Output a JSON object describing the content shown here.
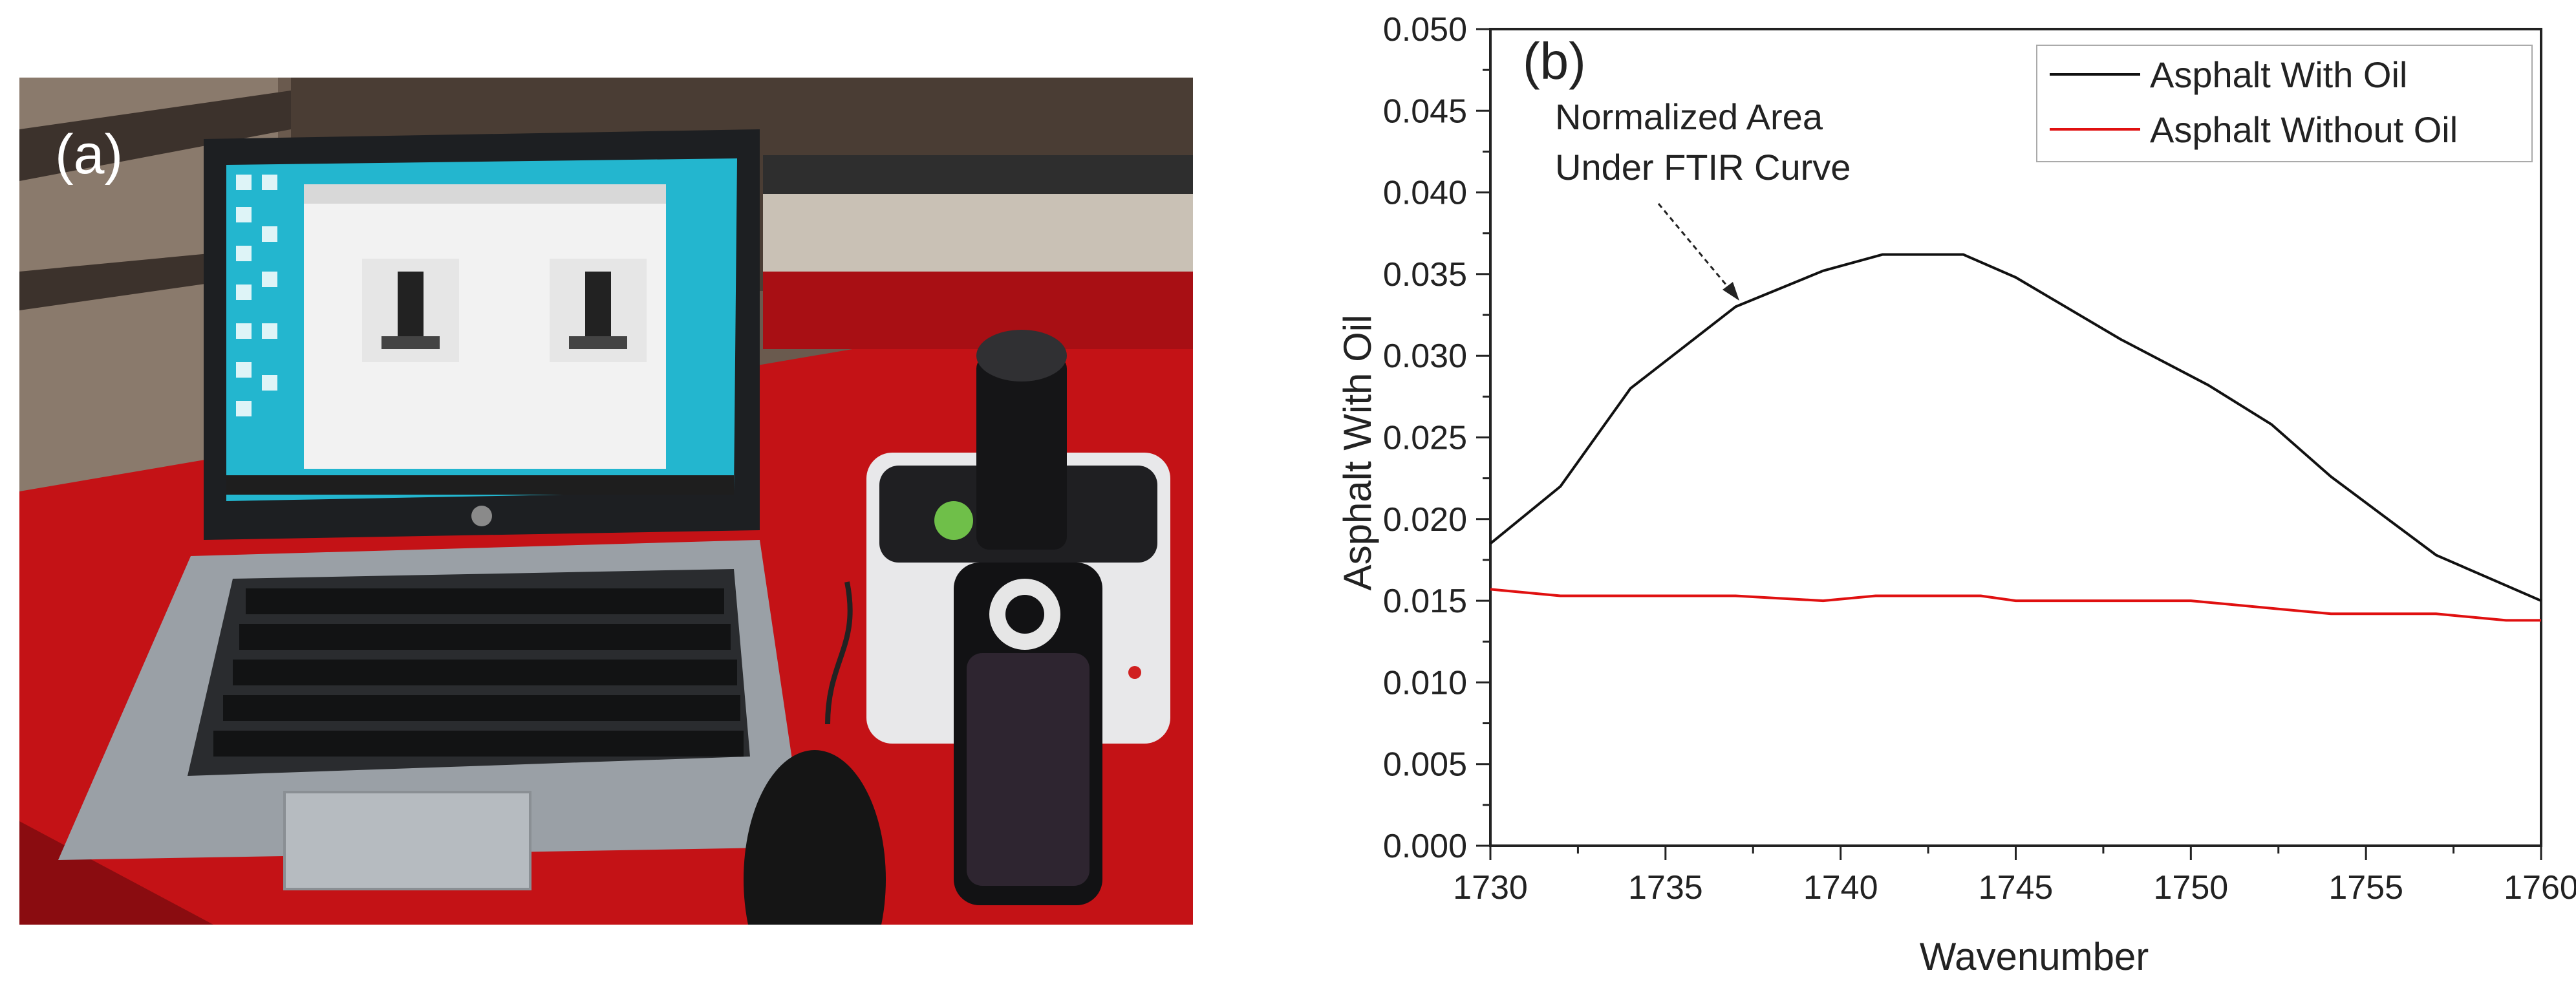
{
  "panel_a": {
    "label": "(a)",
    "scene": [
      "laptop",
      "ftir-spectrometer",
      "mouse",
      "red-table"
    ]
  },
  "panel_b": {
    "label": "(b)",
    "annotation": [
      "Normalized Area",
      "Under FTIR Curve"
    ]
  },
  "colors": {
    "series_with_oil": "#111111",
    "series_without_oil": "#e01010",
    "axis": "#222222"
  },
  "chart_data": {
    "type": "line",
    "title": "",
    "xlabel": "Wavenumber",
    "ylabel": "Asphalt With Oil",
    "xlim": [
      1730,
      1760
    ],
    "ylim": [
      0.0,
      0.05
    ],
    "xticks": [
      1730,
      1735,
      1740,
      1745,
      1750,
      1755,
      1760
    ],
    "xtick_labels": [
      "1730",
      "1735",
      "1740",
      "1745",
      "1750",
      "1755",
      "1760"
    ],
    "yticks": [
      0.0,
      0.005,
      0.01,
      0.015,
      0.02,
      0.025,
      0.03,
      0.035,
      0.04,
      0.045,
      0.05
    ],
    "ytick_labels": [
      "0.000",
      "0.005",
      "0.010",
      "0.015",
      "0.020",
      "0.025",
      "0.030",
      "0.035",
      "0.040",
      "0.045",
      "0.050"
    ],
    "grid": false,
    "legend_position": "top-right",
    "series": [
      {
        "name": "Asphalt With Oil",
        "color": "#111111",
        "x": [
          1730,
          1732,
          1734,
          1737,
          1739.5,
          1741.2,
          1743.5,
          1745,
          1748,
          1750.5,
          1752.3,
          1754,
          1757,
          1760
        ],
        "y": [
          0.0185,
          0.022,
          0.028,
          0.033,
          0.0352,
          0.0362,
          0.0362,
          0.0348,
          0.031,
          0.0282,
          0.0258,
          0.0226,
          0.0178,
          0.015
        ]
      },
      {
        "name": "Asphalt Without Oil",
        "color": "#e01010",
        "x": [
          1730,
          1732,
          1737,
          1739.5,
          1741,
          1744,
          1745,
          1750,
          1754,
          1757,
          1759,
          1760
        ],
        "y": [
          0.0157,
          0.0153,
          0.0153,
          0.015,
          0.0153,
          0.0153,
          0.015,
          0.015,
          0.0142,
          0.0142,
          0.0138,
          0.0138
        ]
      }
    ]
  }
}
